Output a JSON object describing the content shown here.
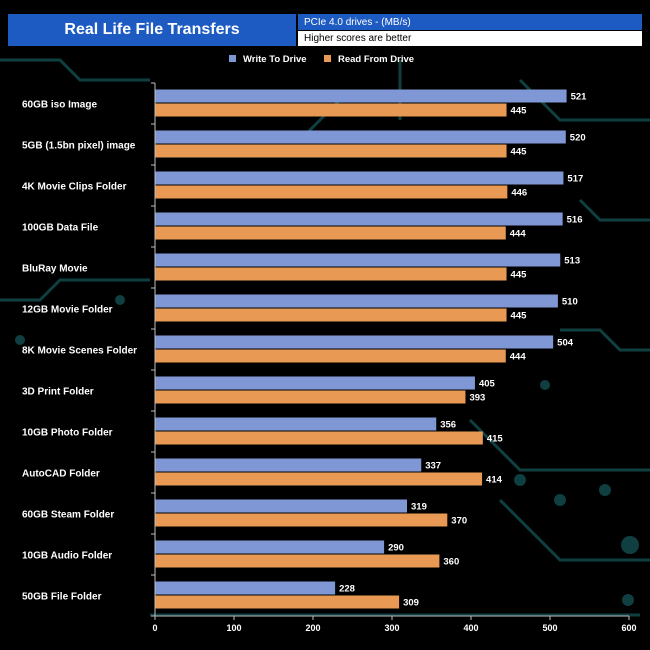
{
  "header": {
    "title": "Real Life File Transfers",
    "subtitle": "PCIe 4.0 drives - (MB/s)",
    "note": "Higher scores are better"
  },
  "colors": {
    "write": "#7f97d4",
    "read": "#e89a55",
    "header_bg": "#1d5bc2",
    "text": "#ffffff",
    "axis": "#bfbfbf",
    "circuit": "#0f3f40"
  },
  "chart_data": {
    "type": "bar",
    "orientation": "horizontal",
    "title": "Real Life File Transfers",
    "subtitle": "PCIe 4.0 drives - (MB/s)",
    "xlabel": "",
    "ylabel": "",
    "xlim": [
      0,
      600
    ],
    "xticks": [
      0,
      100,
      200,
      300,
      400,
      500,
      600
    ],
    "grid": false,
    "legend": "top-center",
    "categories": [
      "60GB iso Image",
      "5GB (1.5bn pixel) image",
      "4K Movie Clips Folder",
      "100GB Data File",
      "BluRay Movie",
      "12GB Movie Folder",
      "8K Movie Scenes Folder",
      "3D Print Folder",
      "10GB Photo Folder",
      "AutoCAD Folder",
      "60GB Steam Folder",
      "10GB Audio Folder",
      "50GB File Folder"
    ],
    "series": [
      {
        "name": "Write To  Drive",
        "values": [
          521,
          520,
          517,
          516,
          513,
          510,
          504,
          405,
          356,
          337,
          319,
          290,
          228
        ]
      },
      {
        "name": "Read From  Drive",
        "values": [
          445,
          445,
          446,
          444,
          445,
          445,
          444,
          393,
          415,
          414,
          370,
          360,
          309
        ]
      }
    ]
  }
}
